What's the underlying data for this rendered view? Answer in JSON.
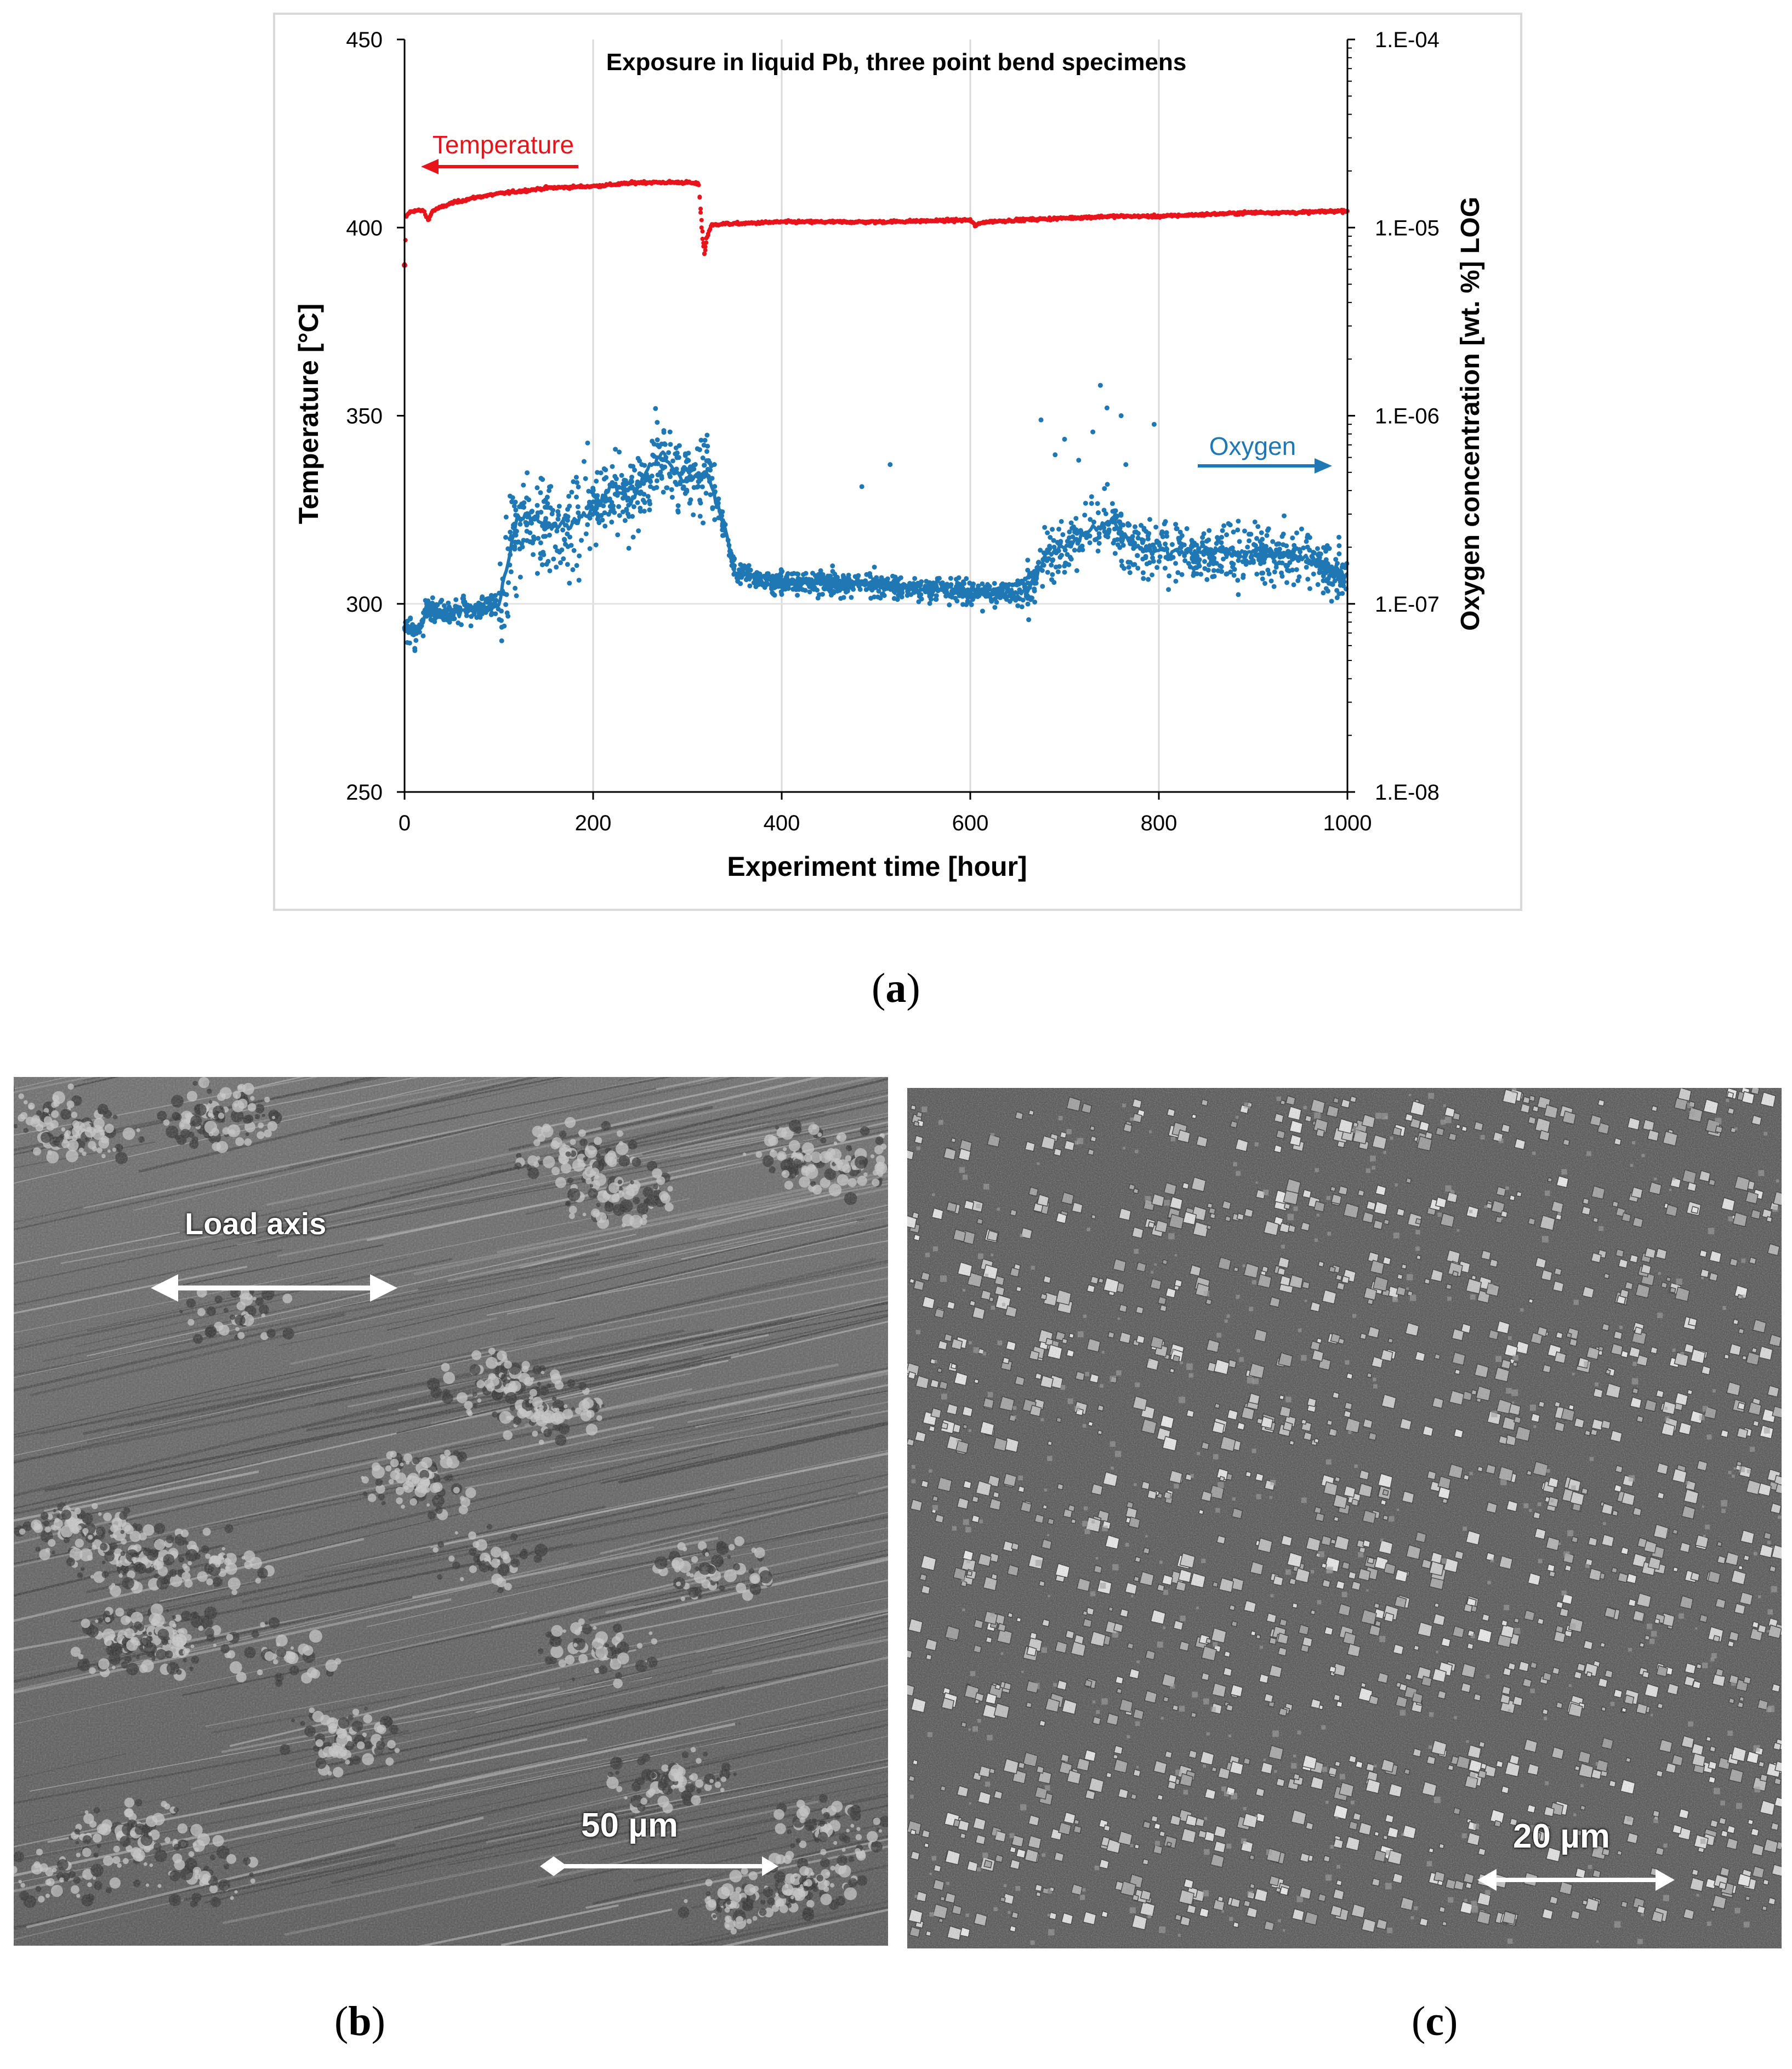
{
  "panel_a": {
    "caption_letter": "a",
    "chart_data": {
      "type": "scatter",
      "title": "Exposure in liquid Pb, three point bend specimens",
      "xlabel": "Experiment time [hour]",
      "ylabel_left": "Temperature [°C]",
      "ylabel_right": "Oxygen concentration [wt. %] LOG",
      "xlim": [
        0,
        1000
      ],
      "ylim_left": [
        250,
        450
      ],
      "ylim_right": [
        1e-08,
        0.0001
      ],
      "right_axis_scale": "log",
      "grid": "vertical",
      "x_ticks": [
        "0",
        "200",
        "400",
        "600",
        "800",
        "1000"
      ],
      "y_ticks_left": [
        "250",
        "300",
        "350",
        "400",
        "450"
      ],
      "y_ticks_right": [
        "1.E-08",
        "1.E-07",
        "1.E-06",
        "1.E-05",
        "1.E-04"
      ],
      "annotations": [
        {
          "text": "Temperature",
          "arrow": "left",
          "color": "#e8141c"
        },
        {
          "text": "Oxygen",
          "arrow": "right",
          "color": "#1f77b4"
        }
      ],
      "series": [
        {
          "name": "Temperature",
          "axis": "left",
          "color": "#e8141c",
          "x": [
            0,
            2,
            5,
            10,
            20,
            25,
            30,
            50,
            75,
            100,
            150,
            200,
            250,
            280,
            300,
            312,
            315,
            318,
            320,
            325,
            335,
            350,
            400,
            500,
            600,
            605,
            615,
            650,
            700,
            750,
            800,
            850,
            900,
            950,
            1000
          ],
          "y": [
            390,
            403,
            404,
            404.5,
            404.5,
            402,
            404.5,
            406.5,
            408,
            409,
            410.5,
            411,
            412,
            412,
            412,
            411.5,
            402,
            393,
            397,
            400.5,
            401,
            401,
            401.5,
            401.5,
            402,
            400.5,
            401.5,
            402,
            402.5,
            403,
            403,
            403.5,
            404,
            404,
            404.5
          ]
        },
        {
          "name": "Oxygen",
          "axis": "right",
          "color": "#1f77b4",
          "trend_x": [
            0,
            15,
            25,
            50,
            75,
            100,
            120,
            150,
            175,
            200,
            220,
            240,
            260,
            275,
            290,
            300,
            320,
            340,
            350,
            380,
            450,
            550,
            600,
            660,
            680,
            700,
            730,
            750,
            770,
            800,
            900,
            950,
            1000
          ],
          "trend_y": [
            7.5e-08,
            7e-08,
            9.5e-08,
            9e-08,
            9.5e-08,
            1e-07,
            3e-07,
            2.6e-07,
            2.6e-07,
            3.2e-07,
            4.2e-07,
            3.5e-07,
            5.5e-07,
            6.2e-07,
            4.8e-07,
            4.5e-07,
            5e-07,
            2.5e-07,
            1.5e-07,
            1.3e-07,
            1.3e-07,
            1.2e-07,
            1.15e-07,
            1.15e-07,
            1.8e-07,
            2e-07,
            2.5e-07,
            2.8e-07,
            2.1e-07,
            1.9e-07,
            1.9e-07,
            1.8e-07,
            1.4e-07
          ]
        }
      ]
    }
  },
  "panel_b": {
    "caption_letter": "b",
    "label": "Load axis",
    "scale_bar": "50 µm"
  },
  "panel_c": {
    "caption_letter": "c",
    "scale_bar": "20 µm"
  }
}
